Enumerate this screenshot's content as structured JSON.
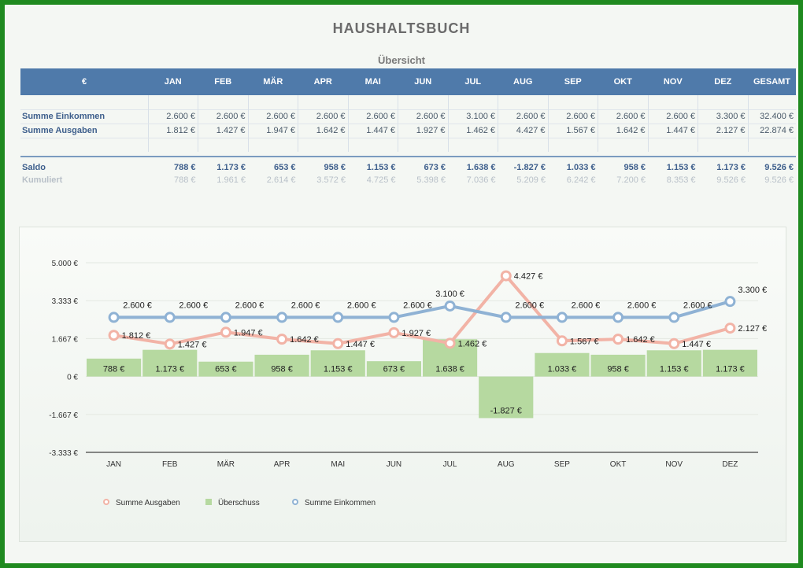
{
  "title": "HAUSHALTSBUCH",
  "subtitle": "Übersicht",
  "table": {
    "header": [
      "€",
      "JAN",
      "FEB",
      "MÄR",
      "APR",
      "MAI",
      "JUN",
      "JUL",
      "AUG",
      "SEP",
      "OKT",
      "NOV",
      "DEZ",
      "GESAMT"
    ],
    "rows": {
      "einkommen": {
        "label": "Summe Einkommen",
        "values": [
          "2.600 €",
          "2.600 €",
          "2.600 €",
          "2.600 €",
          "2.600 €",
          "2.600 €",
          "3.100 €",
          "2.600 €",
          "2.600 €",
          "2.600 €",
          "2.600 €",
          "3.300 €",
          "32.400 €"
        ]
      },
      "ausgaben": {
        "label": "Summe Ausgaben",
        "values": [
          "1.812 €",
          "1.427 €",
          "1.947 €",
          "1.642 €",
          "1.447 €",
          "1.927 €",
          "1.462 €",
          "4.427 €",
          "1.567 €",
          "1.642 €",
          "1.447 €",
          "2.127 €",
          "22.874 €"
        ]
      },
      "saldo": {
        "label": "Saldo",
        "values": [
          "788 €",
          "1.173 €",
          "653 €",
          "958 €",
          "1.153 €",
          "673 €",
          "1.638 €",
          "-1.827 €",
          "1.033 €",
          "958 €",
          "1.153 €",
          "1.173 €",
          "9.526 €"
        ]
      },
      "kumuliert": {
        "label": "Kumuliert",
        "values": [
          "788 €",
          "1.961 €",
          "2.614 €",
          "3.572 €",
          "4.725 €",
          "5.398 €",
          "7.036 €",
          "5.209 €",
          "6.242 €",
          "7.200 €",
          "8.353 €",
          "9.526 €",
          "9.526 €"
        ]
      }
    }
  },
  "chart_data": {
    "type": "bar",
    "categories": [
      "JAN",
      "FEB",
      "MÄR",
      "APR",
      "MAI",
      "JUN",
      "JUL",
      "AUG",
      "SEP",
      "OKT",
      "NOV",
      "DEZ"
    ],
    "ylim": [
      -3333,
      5000
    ],
    "yticks": [
      5000,
      3333,
      1667,
      0,
      -1667,
      -3333
    ],
    "ytick_labels": [
      "5.000 €",
      "3.333 €",
      "1.667 €",
      "0 €",
      "-1.667 €",
      "-3.333 €"
    ],
    "grid": true,
    "legend_position": "bottom-left",
    "series": [
      {
        "name": "Summe Ausgaben",
        "type": "line",
        "color": "#f2b3a6",
        "values": [
          1812,
          1427,
          1947,
          1642,
          1447,
          1927,
          1462,
          4427,
          1567,
          1642,
          1447,
          2127
        ],
        "labels": [
          "1.812 €",
          "1.427 €",
          "1.947 €",
          "1.642 €",
          "1.447 €",
          "1.927 €",
          "1.462 €",
          "4.427 €",
          "1.567 €",
          "1.642 €",
          "1.447 €",
          "2.127 €"
        ]
      },
      {
        "name": "Überschuss",
        "type": "bar",
        "color": "#b6d9a0",
        "values": [
          788,
          1173,
          653,
          958,
          1153,
          673,
          1638,
          -1827,
          1033,
          958,
          1153,
          1173
        ],
        "labels": [
          "788 €",
          "1.173 €",
          "653 €",
          "958 €",
          "1.153 €",
          "673 €",
          "1.638 €",
          "-1.827 €",
          "1.033 €",
          "958 €",
          "1.153 €",
          "1.173 €"
        ]
      },
      {
        "name": "Summe Einkommen",
        "type": "line",
        "color": "#8fb2d4",
        "values": [
          2600,
          2600,
          2600,
          2600,
          2600,
          2600,
          3100,
          2600,
          2600,
          2600,
          2600,
          3300
        ],
        "labels": [
          "2.600 €",
          "2.600 €",
          "2.600 €",
          "2.600 €",
          "2.600 €",
          "2.600 €",
          "3.100 €",
          "2.600 €",
          "2.600 €",
          "2.600 €",
          "2.600 €",
          "3.300 €"
        ]
      }
    ]
  }
}
